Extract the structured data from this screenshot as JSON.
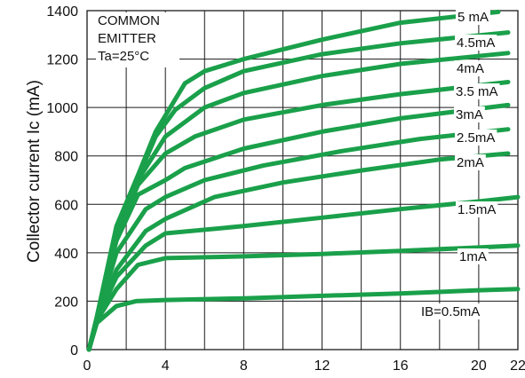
{
  "chart_data": {
    "type": "line",
    "ylabel": "Collector current   Ic (mA)",
    "xlabel": "",
    "xlim": [
      0,
      22
    ],
    "ylim": [
      0,
      1400
    ],
    "x_ticks": [
      "0",
      "4",
      "8",
      "12",
      "16",
      "20",
      "22"
    ],
    "x_tick_values": [
      0,
      4,
      8,
      12,
      16,
      20,
      22
    ],
    "y_ticks": [
      "0",
      "200",
      "400",
      "600",
      "800",
      "1000",
      "1200",
      "1400"
    ],
    "y_tick_values": [
      0,
      200,
      400,
      600,
      800,
      1000,
      1200,
      1400
    ],
    "grid": true,
    "annotation": [
      "COMMON",
      "EMITTER",
      "Ta=25°C"
    ],
    "line_color": "#1aa04a",
    "series": [
      {
        "name": "IB=0.5mA",
        "points": [
          [
            0.1,
            0
          ],
          [
            0.5,
            110
          ],
          [
            1.5,
            180
          ],
          [
            2.5,
            200
          ],
          [
            4,
            205
          ],
          [
            8,
            212
          ],
          [
            12,
            222
          ],
          [
            16,
            232
          ],
          [
            20,
            245
          ],
          [
            22,
            250
          ]
        ]
      },
      {
        "name": "1mA",
        "points": [
          [
            0.1,
            0
          ],
          [
            0.5,
            120
          ],
          [
            1.5,
            250
          ],
          [
            2.6,
            350
          ],
          [
            4,
            378
          ],
          [
            8,
            385
          ],
          [
            12,
            395
          ],
          [
            16,
            408
          ],
          [
            20,
            422
          ],
          [
            22,
            430
          ]
        ]
      },
      {
        "name": "1.5mA",
        "points": [
          [
            0.1,
            0
          ],
          [
            0.5,
            125
          ],
          [
            1.5,
            300
          ],
          [
            3,
            430
          ],
          [
            4,
            480
          ],
          [
            8,
            510
          ],
          [
            12,
            545
          ],
          [
            16,
            580
          ],
          [
            20,
            612
          ],
          [
            22,
            630
          ]
        ]
      },
      {
        "name": "2mA",
        "points": [
          [
            0.1,
            0
          ],
          [
            0.5,
            128
          ],
          [
            1.5,
            330
          ],
          [
            3,
            490
          ],
          [
            4,
            540
          ],
          [
            6.5,
            630
          ],
          [
            10,
            690
          ],
          [
            14,
            740
          ],
          [
            18,
            785
          ],
          [
            21.5,
            810
          ]
        ]
      },
      {
        "name": "2.5mA",
        "points": [
          [
            0.1,
            0
          ],
          [
            0.5,
            130
          ],
          [
            1.5,
            400
          ],
          [
            3,
            580
          ],
          [
            4,
            630
          ],
          [
            6,
            700
          ],
          [
            9,
            760
          ],
          [
            13,
            820
          ],
          [
            17,
            870
          ],
          [
            21.5,
            910
          ]
        ]
      },
      {
        "name": "3mA",
        "points": [
          [
            0.1,
            0
          ],
          [
            0.5,
            130
          ],
          [
            1.5,
            450
          ],
          [
            2.6,
            640
          ],
          [
            4,
            700
          ],
          [
            5,
            750
          ],
          [
            8,
            830
          ],
          [
            12,
            900
          ],
          [
            16,
            955
          ],
          [
            21.5,
            1010
          ]
        ]
      },
      {
        "name": "3.5 mA",
        "points": [
          [
            0.1,
            0
          ],
          [
            0.5,
            132
          ],
          [
            1.5,
            470
          ],
          [
            2.6,
            680
          ],
          [
            4,
            810
          ],
          [
            5.5,
            880
          ],
          [
            8,
            950
          ],
          [
            12,
            1010
          ],
          [
            16,
            1055
          ],
          [
            21.5,
            1105
          ]
        ]
      },
      {
        "name": "4mA",
        "points": [
          [
            0.1,
            0
          ],
          [
            0.5,
            132
          ],
          [
            1.5,
            490
          ],
          [
            2.6,
            700
          ],
          [
            4,
            880
          ],
          [
            6,
            1000
          ],
          [
            8,
            1060
          ],
          [
            12,
            1130
          ],
          [
            16,
            1180
          ],
          [
            21.5,
            1225
          ]
        ]
      },
      {
        "name": "4.5mA",
        "points": [
          [
            0.1,
            0
          ],
          [
            0.5,
            133
          ],
          [
            1.5,
            500
          ],
          [
            2.6,
            710
          ],
          [
            3.5,
            880
          ],
          [
            4.5,
            990
          ],
          [
            6,
            1080
          ],
          [
            8,
            1150
          ],
          [
            12,
            1220
          ],
          [
            16,
            1265
          ],
          [
            21.5,
            1310
          ]
        ]
      },
      {
        "name": "5 mA",
        "points": [
          [
            0.1,
            0
          ],
          [
            0.5,
            135
          ],
          [
            1.5,
            510
          ],
          [
            2.6,
            720
          ],
          [
            3.5,
            900
          ],
          [
            5,
            1100
          ],
          [
            6,
            1150
          ],
          [
            8,
            1200
          ],
          [
            12,
            1280
          ],
          [
            16,
            1350
          ],
          [
            21,
            1395
          ]
        ]
      }
    ]
  }
}
